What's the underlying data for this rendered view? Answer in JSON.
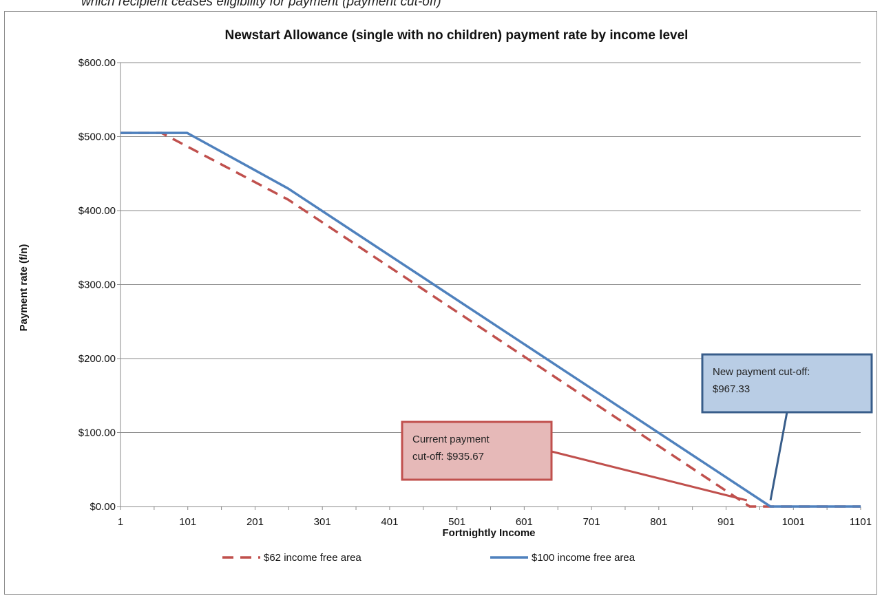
{
  "caption": "which recipient ceases eligibility for payment (payment cut-off)",
  "chart_data": {
    "type": "line",
    "title": "Newstart Allowance (single with no children) payment rate by income level",
    "xlabel": "Fortnightly Income",
    "ylabel": "Payment rate (f/n)",
    "xlim": [
      1,
      1101
    ],
    "ylim": [
      0,
      600
    ],
    "x_ticks": [
      "1",
      "101",
      "201",
      "301",
      "401",
      "501",
      "601",
      "701",
      "801",
      "901",
      "1001",
      "1101"
    ],
    "y_ticks": [
      "$0.00",
      "$100.00",
      "$200.00",
      "$300.00",
      "$400.00",
      "$500.00",
      "$600.00"
    ],
    "grid": true,
    "legend_position": "bottom",
    "series": [
      {
        "name": "$62 income free area",
        "color": "#c0504d",
        "style": "dashed",
        "x": [
          1,
          62,
          250,
          936,
          1101
        ],
        "y": [
          505,
          505,
          415,
          0,
          0
        ]
      },
      {
        "name": "$100 income free area",
        "color": "#4f81bd",
        "style": "solid",
        "x": [
          1,
          100,
          250,
          967,
          1101
        ],
        "y": [
          505,
          505,
          430,
          0,
          0
        ]
      }
    ],
    "annotations": [
      {
        "id": "current",
        "lines": [
          "Current payment",
          "cut-off: $935.67"
        ],
        "fill": "#e6b9b8",
        "border": "#c0504d",
        "point_x": 936,
        "point_y": 0
      },
      {
        "id": "new",
        "lines": [
          "New payment cut-off:",
          "$967.33"
        ],
        "fill": "#b9cde5",
        "border": "#385d8a",
        "point_x": 967,
        "point_y": 0
      }
    ]
  }
}
